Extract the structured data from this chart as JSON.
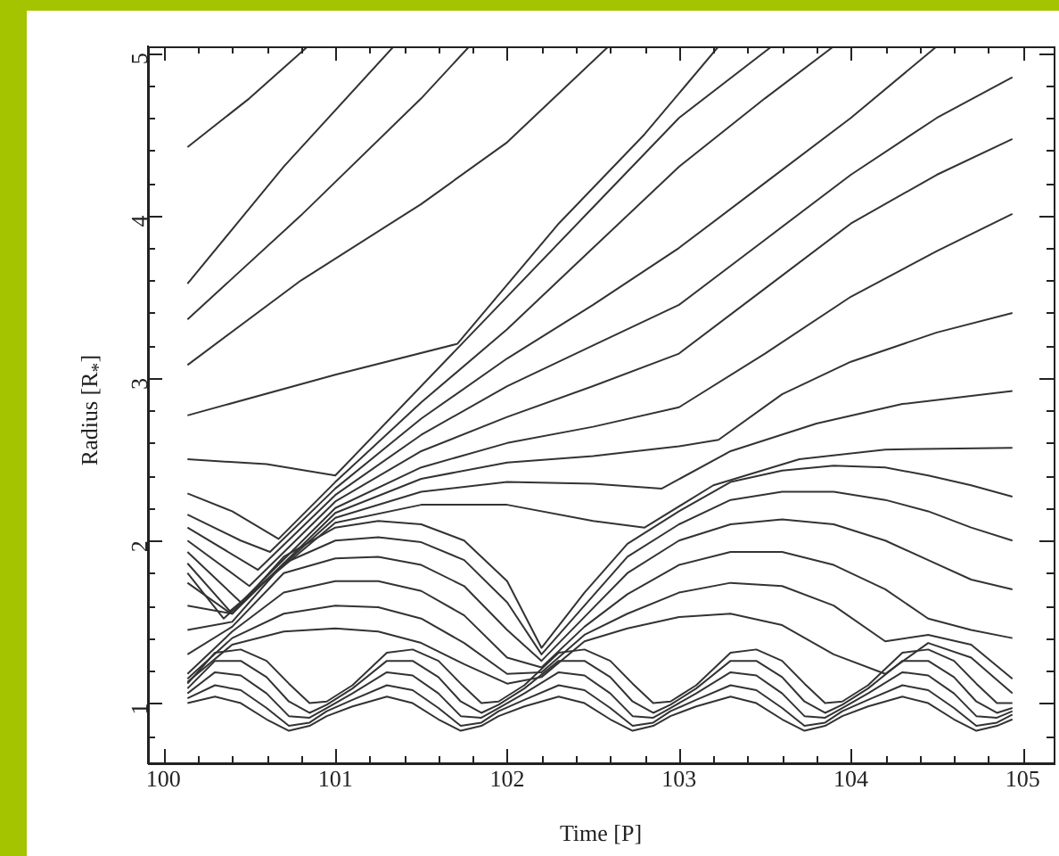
{
  "chart_data": {
    "type": "line",
    "xlabel": "Time [P]",
    "ylabel": "Radius [R$_{*}$]",
    "legend": false,
    "marker": "none",
    "line_style": "solid",
    "xlim": [
      99.91,
      105.18
    ],
    "ylim": [
      0.63,
      5.04
    ],
    "xticks": [
      100,
      {
        "value": 100.2,
        "label": null
      },
      {
        "value": 100.4,
        "label": null
      },
      {
        "value": 100.6,
        "label": null
      },
      {
        "value": 100.8,
        "label": null
      },
      101,
      {
        "value": 101.2,
        "label": null
      },
      {
        "value": 101.4,
        "label": null
      },
      {
        "value": 101.6,
        "label": null
      },
      {
        "value": 101.8,
        "label": null
      },
      102,
      {
        "value": 102.2,
        "label": null
      },
      {
        "value": 102.4,
        "label": null
      },
      {
        "value": 102.6,
        "label": null
      },
      {
        "value": 102.8,
        "label": null
      },
      103,
      {
        "value": 103.2,
        "label": null
      },
      {
        "value": 103.4,
        "label": null
      },
      {
        "value": 103.6,
        "label": null
      },
      {
        "value": 103.8,
        "label": null
      },
      104,
      {
        "value": 104.2,
        "label": null
      },
      {
        "value": 104.4,
        "label": null
      },
      {
        "value": 104.6,
        "label": null
      },
      {
        "value": 104.8,
        "label": null
      },
      105
    ],
    "yticks": [
      {
        "value": 0.8,
        "label": null
      },
      1,
      {
        "value": 1.2,
        "label": null
      },
      {
        "value": 1.4,
        "label": null
      },
      {
        "value": 1.6,
        "label": null
      },
      {
        "value": 1.8,
        "label": null
      },
      2,
      {
        "value": 2.2,
        "label": null
      },
      {
        "value": 2.4,
        "label": null
      },
      {
        "value": 2.6,
        "label": null
      },
      {
        "value": 2.8,
        "label": null
      },
      3,
      {
        "value": 3.2,
        "label": null
      },
      {
        "value": 3.4,
        "label": null
      },
      {
        "value": 3.6,
        "label": null
      },
      {
        "value": 3.8,
        "label": null
      },
      4,
      {
        "value": 4.2,
        "label": null
      },
      {
        "value": 4.4,
        "label": null
      },
      {
        "value": 4.6,
        "label": null
      },
      {
        "value": 4.8,
        "label": null
      },
      5
    ],
    "series": [
      {
        "color": "#333333",
        "x": [
          100.14,
          100.5,
          100.84
        ],
        "values": [
          4.42,
          4.72,
          5.04
        ]
      },
      {
        "color": "#333333",
        "x": [
          100.14,
          100.7,
          101.34
        ],
        "values": [
          3.58,
          4.3,
          5.04
        ]
      },
      {
        "color": "#333333",
        "x": [
          100.14,
          100.8,
          101.5,
          101.78
        ],
        "values": [
          3.36,
          4.0,
          4.72,
          5.04
        ]
      },
      {
        "color": "#333333",
        "x": [
          100.14,
          100.8,
          101.5,
          102.0,
          102.59
        ],
        "values": [
          3.08,
          3.6,
          4.07,
          4.45,
          5.04
        ]
      },
      {
        "color": "#333333",
        "x": [
          100.14,
          101.0,
          101.71,
          102.3,
          102.8,
          103.23
        ],
        "values": [
          2.77,
          3.02,
          3.21,
          3.95,
          4.5,
          5.04
        ]
      },
      {
        "color": "#333333",
        "x": [
          100.14,
          100.6,
          101.0,
          101.7,
          102.5,
          103.0,
          103.54
        ],
        "values": [
          2.5,
          2.47,
          2.4,
          3.17,
          4.05,
          4.6,
          5.04
        ]
      },
      {
        "color": "#333333",
        "x": [
          100.14,
          100.4,
          100.67,
          101.0,
          101.5,
          102.0,
          102.5,
          103.0,
          103.5,
          103.9
        ],
        "values": [
          2.29,
          2.18,
          2.01,
          2.36,
          2.85,
          3.3,
          3.8,
          4.3,
          4.72,
          5.04
        ]
      },
      {
        "color": "#333333",
        "x": [
          100.14,
          100.45,
          100.62,
          101.0,
          101.5,
          102.0,
          102.5,
          103.0,
          103.5,
          104.0,
          104.5
        ],
        "values": [
          2.16,
          2.0,
          1.93,
          2.32,
          2.75,
          3.12,
          3.45,
          3.8,
          4.2,
          4.6,
          5.04
        ]
      },
      {
        "color": "#333333",
        "x": [
          100.14,
          100.55,
          101.0,
          101.5,
          102.0,
          102.5,
          103.0,
          103.5,
          104.0,
          104.5,
          104.94
        ],
        "values": [
          2.08,
          1.82,
          2.28,
          2.65,
          2.95,
          3.2,
          3.45,
          3.85,
          4.25,
          4.6,
          4.85
        ]
      },
      {
        "color": "#333333",
        "x": [
          100.14,
          100.5,
          101.0,
          101.5,
          102.0,
          102.5,
          103.0,
          103.5,
          104.0,
          104.5,
          104.94
        ],
        "values": [
          2.0,
          1.72,
          2.24,
          2.55,
          2.76,
          2.95,
          3.15,
          3.55,
          3.95,
          4.25,
          4.47
        ]
      },
      {
        "color": "#333333",
        "x": [
          100.14,
          100.45,
          101.0,
          101.5,
          102.0,
          102.5,
          103.0,
          103.5,
          104.0,
          104.5,
          104.94
        ],
        "values": [
          1.93,
          1.62,
          2.2,
          2.45,
          2.6,
          2.7,
          2.82,
          3.15,
          3.5,
          3.78,
          4.01
        ]
      },
      {
        "color": "#333333",
        "x": [
          100.14,
          100.4,
          101.0,
          101.5,
          102.0,
          102.5,
          103.0,
          103.23,
          103.6,
          104.0,
          104.5,
          104.94
        ],
        "values": [
          1.86,
          1.55,
          2.17,
          2.38,
          2.48,
          2.52,
          2.58,
          2.62,
          2.9,
          3.1,
          3.28,
          3.4
        ]
      },
      {
        "color": "#333333",
        "x": [
          100.14,
          100.35,
          101.0,
          101.5,
          102.0,
          102.5,
          102.9,
          103.3,
          103.8,
          104.3,
          104.94
        ],
        "values": [
          1.8,
          1.52,
          2.14,
          2.3,
          2.36,
          2.35,
          2.32,
          2.55,
          2.72,
          2.84,
          2.92
        ]
      },
      {
        "color": "#333333",
        "x": [
          100.14,
          100.38,
          101.0,
          101.5,
          102.0,
          102.5,
          102.8,
          103.2,
          103.7,
          104.2,
          104.94
        ],
        "values": [
          1.74,
          1.56,
          2.11,
          2.22,
          2.22,
          2.12,
          2.08,
          2.34,
          2.5,
          2.56,
          2.57
        ]
      },
      {
        "color": "#333333",
        "x": [
          100.14,
          100.4,
          100.7,
          101.0,
          101.25,
          101.5,
          101.75,
          102.0,
          102.2,
          102.45,
          102.7,
          103.0,
          103.3,
          103.6,
          103.9,
          104.2,
          104.45,
          104.7,
          104.94
        ],
        "values": [
          1.6,
          1.55,
          1.9,
          2.08,
          2.12,
          2.1,
          2.0,
          1.75,
          1.34,
          1.68,
          1.98,
          2.18,
          2.36,
          2.43,
          2.46,
          2.45,
          2.4,
          2.34,
          2.27
        ]
      },
      {
        "color": "#333333",
        "x": [
          100.14,
          100.4,
          100.7,
          101.0,
          101.25,
          101.5,
          101.75,
          102.0,
          102.2,
          102.45,
          102.7,
          103.0,
          103.3,
          103.6,
          103.9,
          104.2,
          104.45,
          104.7,
          104.94
        ],
        "values": [
          1.45,
          1.5,
          1.86,
          2.0,
          2.02,
          1.99,
          1.88,
          1.62,
          1.3,
          1.6,
          1.9,
          2.1,
          2.25,
          2.3,
          2.3,
          2.25,
          2.18,
          2.08,
          2.0
        ]
      },
      {
        "color": "#333333",
        "x": [
          100.14,
          100.4,
          100.7,
          101.0,
          101.25,
          101.5,
          101.75,
          102.0,
          102.2,
          102.45,
          102.7,
          103.0,
          103.3,
          103.6,
          103.9,
          104.2,
          104.45,
          104.7,
          104.94
        ],
        "values": [
          1.3,
          1.47,
          1.8,
          1.89,
          1.9,
          1.85,
          1.72,
          1.45,
          1.26,
          1.53,
          1.8,
          2.0,
          2.1,
          2.13,
          2.1,
          2.0,
          1.88,
          1.76,
          1.7
        ]
      },
      {
        "color": "#333333",
        "x": [
          100.14,
          100.4,
          100.7,
          101.0,
          101.25,
          101.5,
          101.75,
          102.0,
          102.2,
          102.45,
          102.7,
          103.0,
          103.3,
          103.6,
          103.9,
          104.2,
          104.45,
          104.7,
          104.94
        ],
        "values": [
          1.18,
          1.44,
          1.68,
          1.75,
          1.75,
          1.69,
          1.54,
          1.28,
          1.22,
          1.47,
          1.67,
          1.85,
          1.93,
          1.93,
          1.85,
          1.7,
          1.52,
          1.45,
          1.4
        ]
      },
      {
        "color": "#333333",
        "x": [
          100.14,
          100.4,
          100.7,
          101.0,
          101.25,
          101.5,
          101.75,
          102.0,
          102.2,
          102.45,
          102.7,
          103.0,
          103.3,
          103.6,
          103.9,
          104.2,
          104.45,
          104.7,
          104.94
        ],
        "values": [
          1.15,
          1.4,
          1.55,
          1.6,
          1.59,
          1.52,
          1.37,
          1.18,
          1.19,
          1.42,
          1.55,
          1.68,
          1.74,
          1.72,
          1.6,
          1.38,
          1.42,
          1.36,
          1.15
        ]
      },
      {
        "color": "#333333",
        "x": [
          100.14,
          100.4,
          100.7,
          101.0,
          101.25,
          101.5,
          101.75,
          102.0,
          102.2,
          102.45,
          102.7,
          103.0,
          103.3,
          103.6,
          103.9,
          104.2,
          104.45,
          104.7,
          104.94
        ],
        "values": [
          1.13,
          1.36,
          1.44,
          1.46,
          1.44,
          1.37,
          1.24,
          1.12,
          1.16,
          1.38,
          1.46,
          1.53,
          1.55,
          1.48,
          1.3,
          1.18,
          1.37,
          1.28,
          1.06
        ]
      },
      {
        "color": "#333333",
        "x": [
          100.14,
          100.3,
          100.45,
          100.6,
          100.73,
          100.85,
          100.95,
          101.1,
          101.3,
          101.45,
          101.6,
          101.73,
          101.85,
          101.95,
          102.1,
          102.3,
          102.45,
          102.6,
          102.73,
          102.85,
          102.95,
          103.1,
          103.3,
          103.45,
          103.6,
          103.73,
          103.85,
          103.95,
          104.1,
          104.3,
          104.45,
          104.6,
          104.73,
          104.85,
          104.94
        ],
        "values": [
          1.12,
          1.31,
          1.33,
          1.26,
          1.12,
          1.0,
          1.01,
          1.11,
          1.31,
          1.33,
          1.26,
          1.12,
          1.0,
          1.01,
          1.11,
          1.31,
          1.33,
          1.26,
          1.12,
          1.0,
          1.01,
          1.11,
          1.31,
          1.33,
          1.26,
          1.12,
          1.0,
          1.01,
          1.11,
          1.31,
          1.33,
          1.26,
          1.12,
          1.0,
          1.0
        ]
      },
      {
        "color": "#333333",
        "x": [
          100.14,
          100.3,
          100.45,
          100.6,
          100.73,
          100.85,
          100.95,
          101.1,
          101.3,
          101.45,
          101.6,
          101.73,
          101.85,
          101.95,
          102.1,
          102.3,
          102.45,
          102.6,
          102.73,
          102.85,
          102.95,
          103.1,
          103.3,
          103.45,
          103.6,
          103.73,
          103.85,
          103.95,
          104.1,
          104.3,
          104.45,
          104.6,
          104.73,
          104.85,
          104.94
        ],
        "values": [
          1.09,
          1.26,
          1.26,
          1.16,
          1.01,
          0.94,
          0.99,
          1.09,
          1.26,
          1.26,
          1.16,
          1.01,
          0.94,
          0.99,
          1.09,
          1.26,
          1.26,
          1.16,
          1.01,
          0.94,
          0.99,
          1.09,
          1.26,
          1.26,
          1.16,
          1.01,
          0.94,
          0.99,
          1.09,
          1.26,
          1.26,
          1.16,
          1.01,
          0.94,
          0.97
        ]
      },
      {
        "color": "#333333",
        "x": [
          100.14,
          100.3,
          100.45,
          100.6,
          100.73,
          100.85,
          100.95,
          101.1,
          101.3,
          101.45,
          101.6,
          101.73,
          101.85,
          101.95,
          102.1,
          102.3,
          102.45,
          102.6,
          102.73,
          102.85,
          102.95,
          103.1,
          103.3,
          103.45,
          103.6,
          103.73,
          103.85,
          103.95,
          104.1,
          104.3,
          104.45,
          104.6,
          104.73,
          104.85,
          104.94
        ],
        "values": [
          1.06,
          1.19,
          1.17,
          1.06,
          0.92,
          0.91,
          0.97,
          1.06,
          1.19,
          1.17,
          1.06,
          0.92,
          0.91,
          0.97,
          1.06,
          1.19,
          1.17,
          1.06,
          0.92,
          0.91,
          0.97,
          1.06,
          1.19,
          1.17,
          1.06,
          0.92,
          0.91,
          0.97,
          1.06,
          1.19,
          1.17,
          1.06,
          0.92,
          0.91,
          0.95
        ]
      },
      {
        "color": "#333333",
        "x": [
          100.14,
          100.3,
          100.45,
          100.6,
          100.73,
          100.85,
          100.95,
          101.1,
          101.3,
          101.45,
          101.6,
          101.73,
          101.85,
          101.95,
          102.1,
          102.3,
          102.45,
          102.6,
          102.73,
          102.85,
          102.95,
          103.1,
          103.3,
          103.45,
          103.6,
          103.73,
          103.85,
          103.95,
          104.1,
          104.3,
          104.45,
          104.6,
          104.73,
          104.85,
          104.94
        ],
        "values": [
          1.03,
          1.11,
          1.08,
          0.97,
          0.86,
          0.88,
          0.95,
          1.02,
          1.11,
          1.08,
          0.97,
          0.86,
          0.88,
          0.95,
          1.02,
          1.11,
          1.08,
          0.97,
          0.86,
          0.88,
          0.95,
          1.02,
          1.11,
          1.08,
          0.97,
          0.86,
          0.88,
          0.95,
          1.02,
          1.11,
          1.08,
          0.97,
          0.86,
          0.88,
          0.93
        ]
      },
      {
        "color": "#333333",
        "x": [
          100.14,
          100.3,
          100.45,
          100.6,
          100.73,
          100.85,
          100.95,
          101.1,
          101.3,
          101.45,
          101.6,
          101.73,
          101.85,
          101.95,
          102.1,
          102.3,
          102.45,
          102.6,
          102.73,
          102.85,
          102.95,
          103.1,
          103.3,
          103.45,
          103.6,
          103.73,
          103.85,
          103.95,
          104.1,
          104.3,
          104.45,
          104.6,
          104.73,
          104.85,
          104.94
        ],
        "values": [
          1.0,
          1.04,
          1.0,
          0.9,
          0.83,
          0.86,
          0.92,
          0.98,
          1.04,
          1.0,
          0.9,
          0.83,
          0.86,
          0.92,
          0.98,
          1.04,
          1.0,
          0.9,
          0.83,
          0.86,
          0.92,
          0.98,
          1.04,
          1.0,
          0.9,
          0.83,
          0.86,
          0.92,
          0.98,
          1.04,
          1.0,
          0.9,
          0.83,
          0.86,
          0.9
        ]
      }
    ]
  }
}
